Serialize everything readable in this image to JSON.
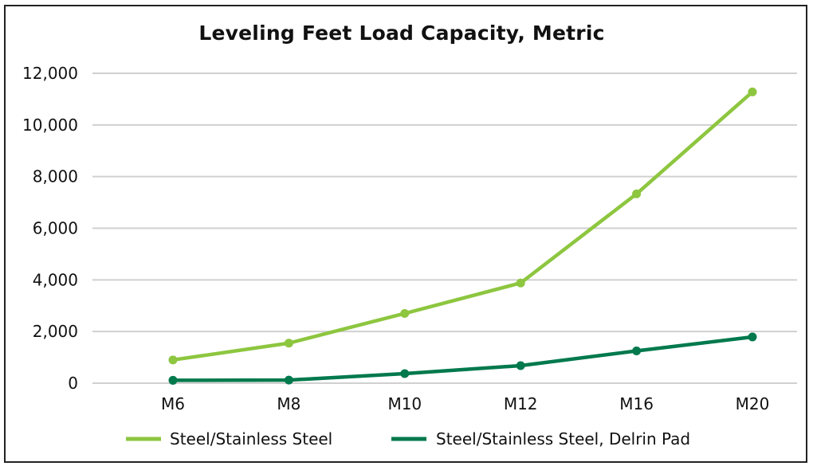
{
  "chart_data": {
    "type": "line",
    "title": "Leveling Feet Load Capacity, Metric",
    "xlabel": "",
    "ylabel": "",
    "categories": [
      "M6",
      "M8",
      "M10",
      "M12",
      "M16",
      "M20"
    ],
    "ylim": [
      0,
      12000
    ],
    "yticks": [
      0,
      2000,
      4000,
      6000,
      8000,
      10000,
      12000
    ],
    "ytick_labels": [
      "0",
      "2,000",
      "4,000",
      "6,000",
      "8,000",
      "10,000",
      "12,000"
    ],
    "grid": true,
    "legend_position": "bottom",
    "series": [
      {
        "name": "Steel/Stainless Steel",
        "color": "#8dc63f",
        "values": [
          900,
          1550,
          2700,
          3880,
          7330,
          11280
        ]
      },
      {
        "name": "Steel/Stainless Steel, Delrin Pad",
        "color": "#00794d",
        "values": [
          110,
          120,
          370,
          680,
          1250,
          1790
        ]
      }
    ]
  }
}
